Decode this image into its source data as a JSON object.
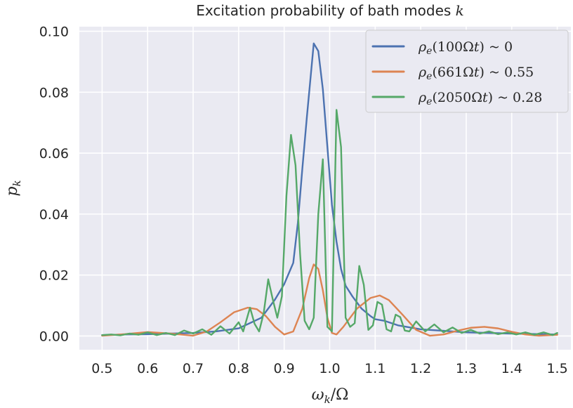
{
  "chart_data": {
    "type": "line",
    "title": "Excitation probability of bath modes k",
    "xlabel": "ω_k/Ω",
    "ylabel": "p_k",
    "xlim": [
      0.45,
      1.53
    ],
    "ylim": [
      -0.0045,
      0.1015
    ],
    "xticks": [
      0.5,
      0.6,
      0.7,
      0.8,
      0.9,
      1.0,
      1.1,
      1.2,
      1.3,
      1.4,
      1.5
    ],
    "xtick_labels": [
      "0.5",
      "0.6",
      "0.7",
      "0.8",
      "0.9",
      "1.0",
      "1.1",
      "1.2",
      "1.3",
      "1.4",
      "1.5"
    ],
    "yticks": [
      0.0,
      0.02,
      0.04,
      0.06,
      0.08,
      0.1
    ],
    "ytick_labels": [
      "0.00",
      "0.02",
      "0.04",
      "0.06",
      "0.08",
      "0.10"
    ],
    "grid": true,
    "background": "#eaeaf2",
    "legend_position": "top-right",
    "series": [
      {
        "name": "ρ_e(100Ωt) ~ 0",
        "color": "#4c72b0",
        "x": [
          0.5,
          0.55,
          0.6,
          0.65,
          0.7,
          0.75,
          0.8,
          0.85,
          0.88,
          0.9,
          0.92,
          0.93,
          0.94,
          0.95,
          0.96,
          0.965,
          0.975,
          0.985,
          0.995,
          1.005,
          1.015,
          1.025,
          1.035,
          1.05,
          1.07,
          1.09,
          1.1,
          1.12,
          1.15,
          1.2,
          1.3,
          1.4,
          1.5
        ],
        "values": [
          0.0003,
          0.0005,
          0.0006,
          0.0008,
          0.001,
          0.0015,
          0.0025,
          0.006,
          0.012,
          0.017,
          0.024,
          0.037,
          0.055,
          0.072,
          0.088,
          0.096,
          0.0935,
          0.081,
          0.062,
          0.043,
          0.031,
          0.022,
          0.0165,
          0.013,
          0.009,
          0.0065,
          0.0055,
          0.005,
          0.0035,
          0.0022,
          0.0012,
          0.0008,
          0.0005
        ]
      },
      {
        "name": "ρ_e(661Ωt) ~ 0.55",
        "color": "#dd8452",
        "x": [
          0.5,
          0.55,
          0.6,
          0.65,
          0.7,
          0.73,
          0.76,
          0.79,
          0.82,
          0.84,
          0.86,
          0.88,
          0.9,
          0.92,
          0.94,
          0.955,
          0.965,
          0.975,
          0.985,
          0.995,
          1.005,
          1.015,
          1.03,
          1.06,
          1.09,
          1.11,
          1.13,
          1.16,
          1.19,
          1.22,
          1.25,
          1.28,
          1.31,
          1.34,
          1.37,
          1.4,
          1.43,
          1.46,
          1.5
        ],
        "values": [
          0.0001,
          0.0006,
          0.0013,
          0.0008,
          0.0001,
          0.0015,
          0.0045,
          0.0078,
          0.0093,
          0.0088,
          0.0065,
          0.003,
          0.0005,
          0.0015,
          0.009,
          0.019,
          0.0235,
          0.022,
          0.015,
          0.006,
          0.001,
          0.0005,
          0.003,
          0.009,
          0.0125,
          0.0133,
          0.0118,
          0.007,
          0.002,
          0.0001,
          0.0005,
          0.0017,
          0.0027,
          0.003,
          0.0025,
          0.0014,
          0.0005,
          0.0001,
          0.0004
        ]
      },
      {
        "name": "ρ_e(2050Ωt) ~ 0.28",
        "color": "#55a868",
        "x": [
          0.5,
          0.52,
          0.54,
          0.56,
          0.58,
          0.6,
          0.62,
          0.64,
          0.66,
          0.68,
          0.7,
          0.72,
          0.74,
          0.76,
          0.78,
          0.8,
          0.81,
          0.825,
          0.835,
          0.845,
          0.855,
          0.865,
          0.875,
          0.885,
          0.895,
          0.905,
          0.915,
          0.925,
          0.935,
          0.945,
          0.955,
          0.965,
          0.975,
          0.985,
          0.995,
          1.005,
          1.015,
          1.025,
          1.035,
          1.045,
          1.055,
          1.065,
          1.075,
          1.085,
          1.095,
          1.105,
          1.115,
          1.125,
          1.135,
          1.145,
          1.155,
          1.165,
          1.175,
          1.19,
          1.21,
          1.23,
          1.25,
          1.27,
          1.29,
          1.31,
          1.33,
          1.35,
          1.37,
          1.39,
          1.41,
          1.43,
          1.45,
          1.47,
          1.49,
          1.5
        ],
        "values": [
          0.0003,
          0.0005,
          0.0002,
          0.0008,
          0.0004,
          0.0012,
          0.0003,
          0.001,
          0.0003,
          0.0018,
          0.0008,
          0.0022,
          0.0004,
          0.0032,
          0.0008,
          0.0045,
          0.0015,
          0.0093,
          0.004,
          0.0015,
          0.0075,
          0.0186,
          0.012,
          0.006,
          0.013,
          0.046,
          0.066,
          0.056,
          0.027,
          0.005,
          0.0022,
          0.006,
          0.04,
          0.058,
          0.003,
          0.0015,
          0.0742,
          0.062,
          0.006,
          0.003,
          0.0042,
          0.023,
          0.0168,
          0.002,
          0.0035,
          0.0112,
          0.0103,
          0.0022,
          0.0015,
          0.007,
          0.0062,
          0.0018,
          0.0015,
          0.0048,
          0.0015,
          0.0038,
          0.0012,
          0.0028,
          0.001,
          0.002,
          0.0008,
          0.0015,
          0.0006,
          0.0012,
          0.0005,
          0.0012,
          0.0004,
          0.0012,
          0.0003,
          0.001
        ]
      }
    ]
  }
}
